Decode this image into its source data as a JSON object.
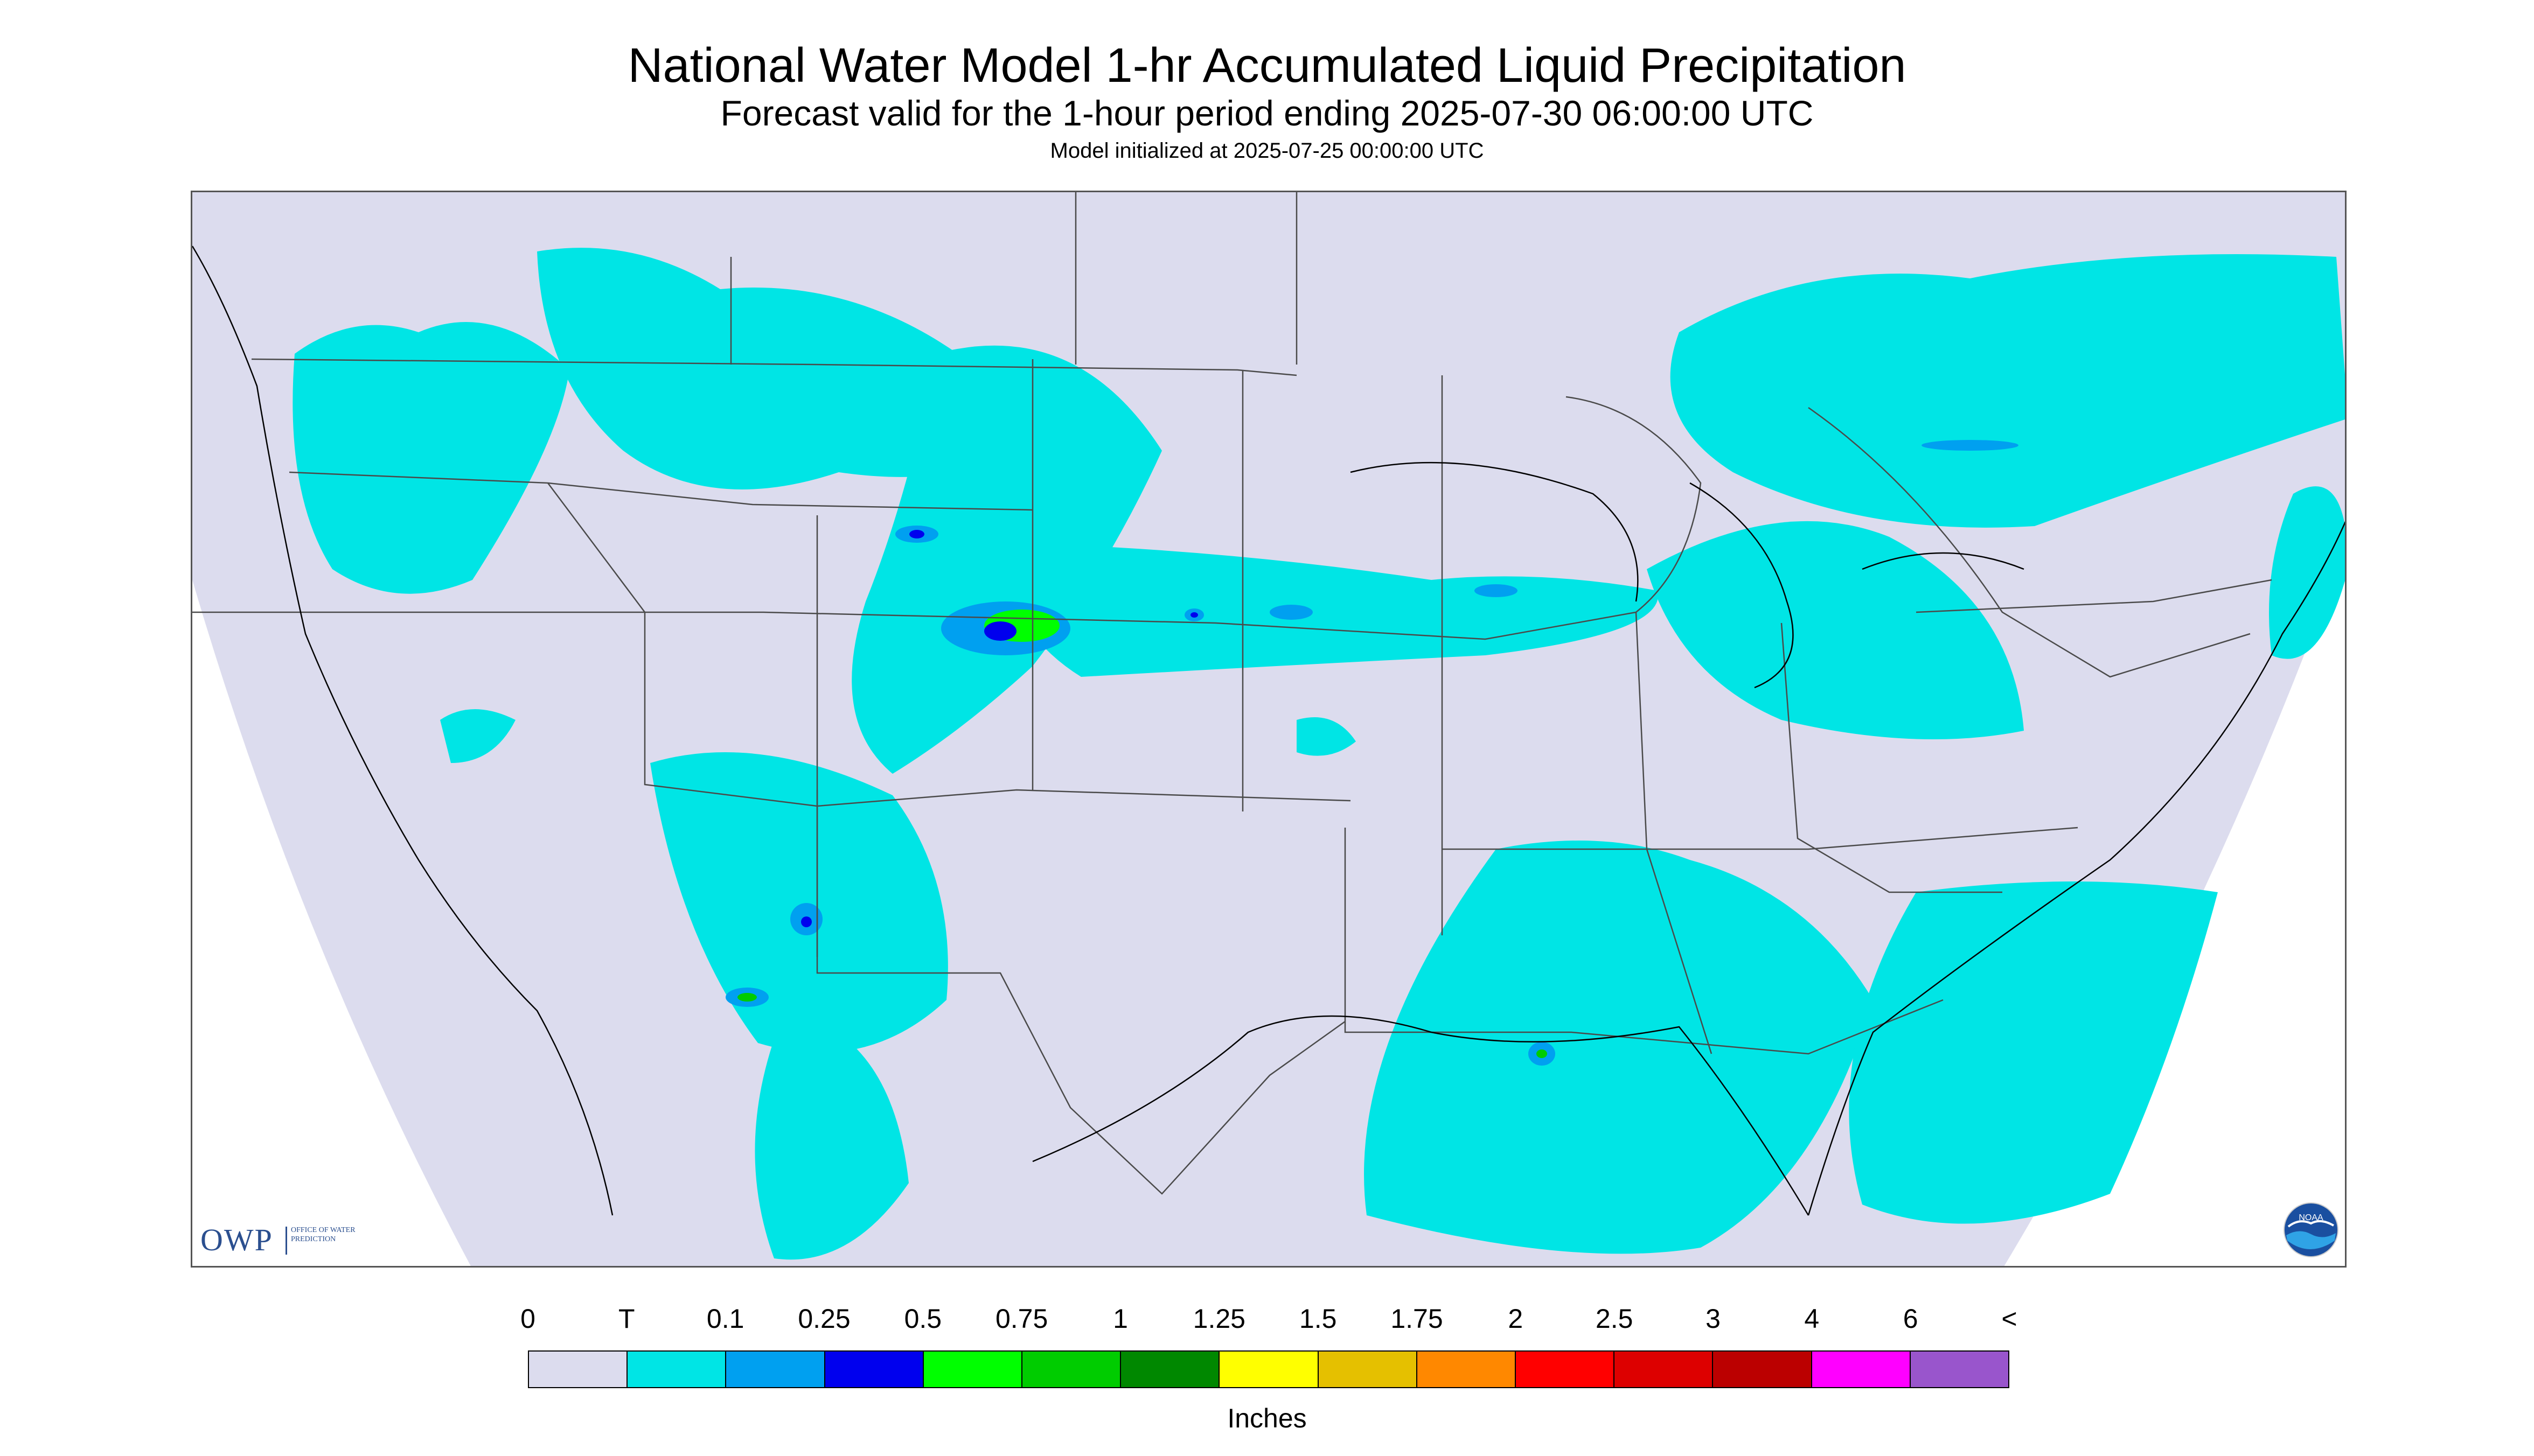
{
  "title": "National Water Model 1-hr Accumulated Liquid Precipitation",
  "subtitle": "Forecast valid for the 1-hour period ending 2025-07-30 06:00:00 UTC",
  "init_text": "Model initialized at 2025-07-25 00:00:00 UTC",
  "logos": {
    "owp_text": "OWP",
    "owp_sub": "OFFICE OF WATER PREDICTION",
    "noaa_text": "NOAA"
  },
  "colors": {
    "background_domain": "#dcdcee",
    "trace": "#00e5e5",
    "state_lines": "#4a4a4a"
  },
  "legend": {
    "labels": [
      "0",
      "T",
      "0.1",
      "0.25",
      "0.5",
      "0.75",
      "1",
      "1.25",
      "1.5",
      "1.75",
      "2",
      "2.5",
      "3",
      "4",
      "6",
      "<"
    ],
    "colors": [
      "#dcdcee",
      "#00e5e5",
      "#00a0f0",
      "#0000ee",
      "#00ff00",
      "#00cc00",
      "#008800",
      "#ffff00",
      "#e5c000",
      "#ff8800",
      "#ff0000",
      "#dd0000",
      "#bb0000",
      "#ff00ff",
      "#9955cc"
    ],
    "units": "Inches"
  }
}
